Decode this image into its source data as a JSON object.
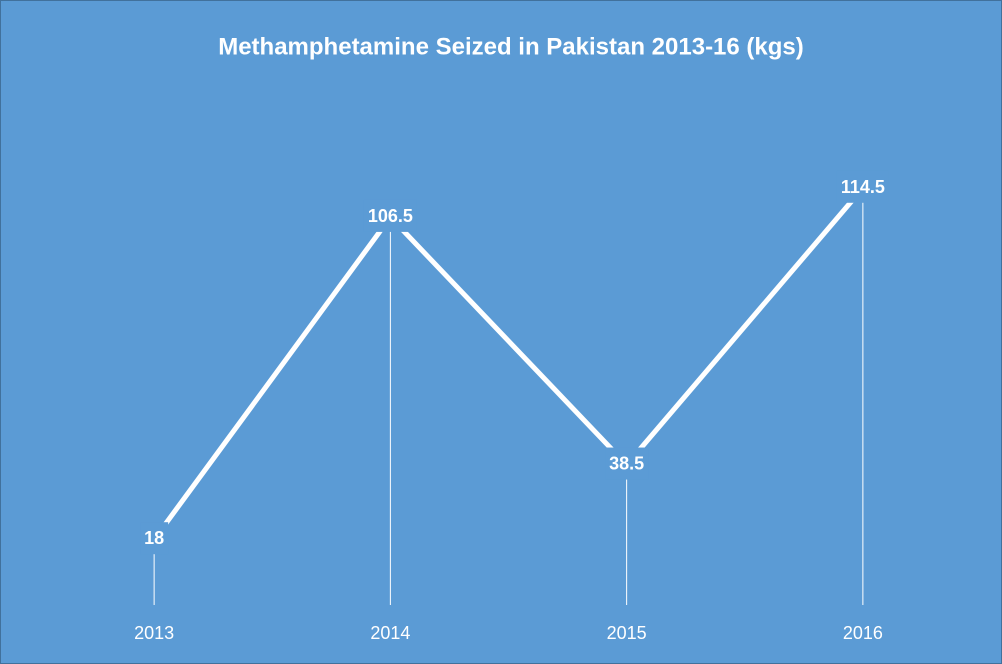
{
  "chart_data": {
    "type": "line",
    "title": "Methamphetamine Seized in Pakistan 2013-16 (kgs)",
    "categories": [
      "2013",
      "2014",
      "2015",
      "2016"
    ],
    "values": [
      18,
      106.5,
      38.5,
      114.5
    ],
    "color": "#ffffff",
    "background": "#5b9bd5",
    "ylim": [
      0,
      120
    ],
    "drop_lines": true,
    "data_labels": true
  }
}
